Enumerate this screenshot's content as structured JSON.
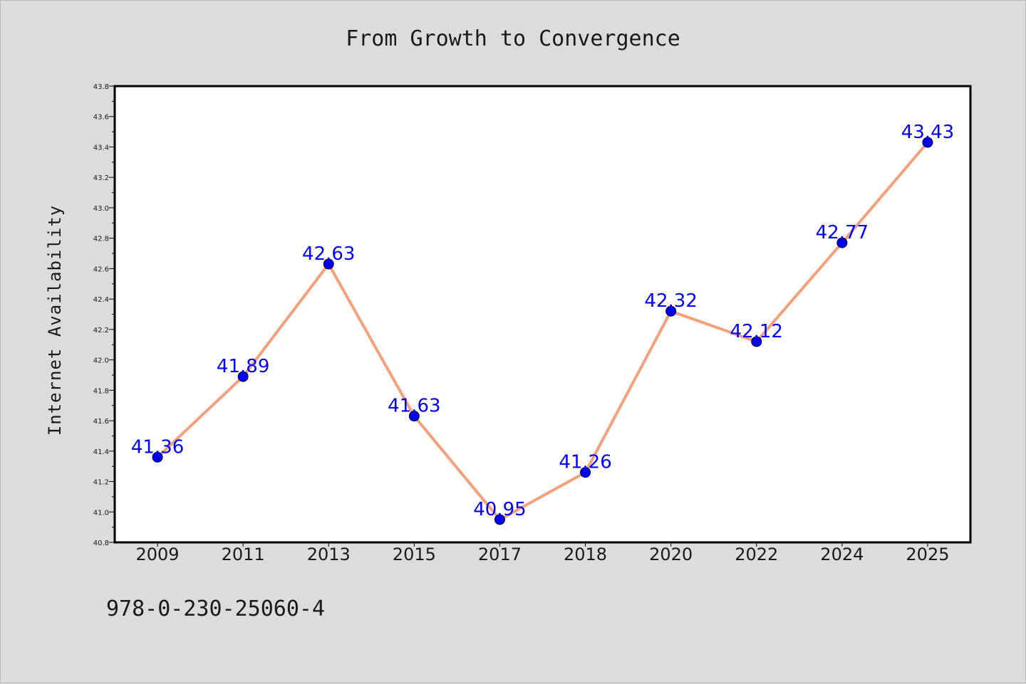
{
  "chart_data": {
    "type": "line",
    "title": "From Growth to Convergence",
    "xlabel": "",
    "ylabel": "Internet Availability",
    "categories": [
      "2009",
      "2011",
      "2013",
      "2015",
      "2017",
      "2018",
      "2020",
      "2022",
      "2024",
      "2025"
    ],
    "series": [
      {
        "values": [
          41.36,
          41.89,
          42.63,
          41.63,
          40.95,
          41.26,
          42.32,
          42.12,
          42.77,
          43.43
        ],
        "line_color": "#f4a07a",
        "marker_color": "#0000ee"
      }
    ],
    "data_labels": [
      "41.36",
      "41.89",
      "42.63",
      "41.63",
      "40.95",
      "41.26",
      "42.32",
      "42.12",
      "42.77",
      "43.43"
    ],
    "ylim": [
      40.8,
      43.8
    ],
    "yticks": [
      "40.8",
      "41.0",
      "41.2",
      "41.4",
      "41.6",
      "41.8",
      "42.0",
      "42.2",
      "42.4",
      "42.6",
      "42.8",
      "43.0",
      "43.2",
      "43.4",
      "43.6",
      "43.8"
    ],
    "grid": false,
    "legend": "none",
    "data_label_color": "#0000ff"
  },
  "footer": {
    "isbn": "978-0-230-25060-4"
  }
}
